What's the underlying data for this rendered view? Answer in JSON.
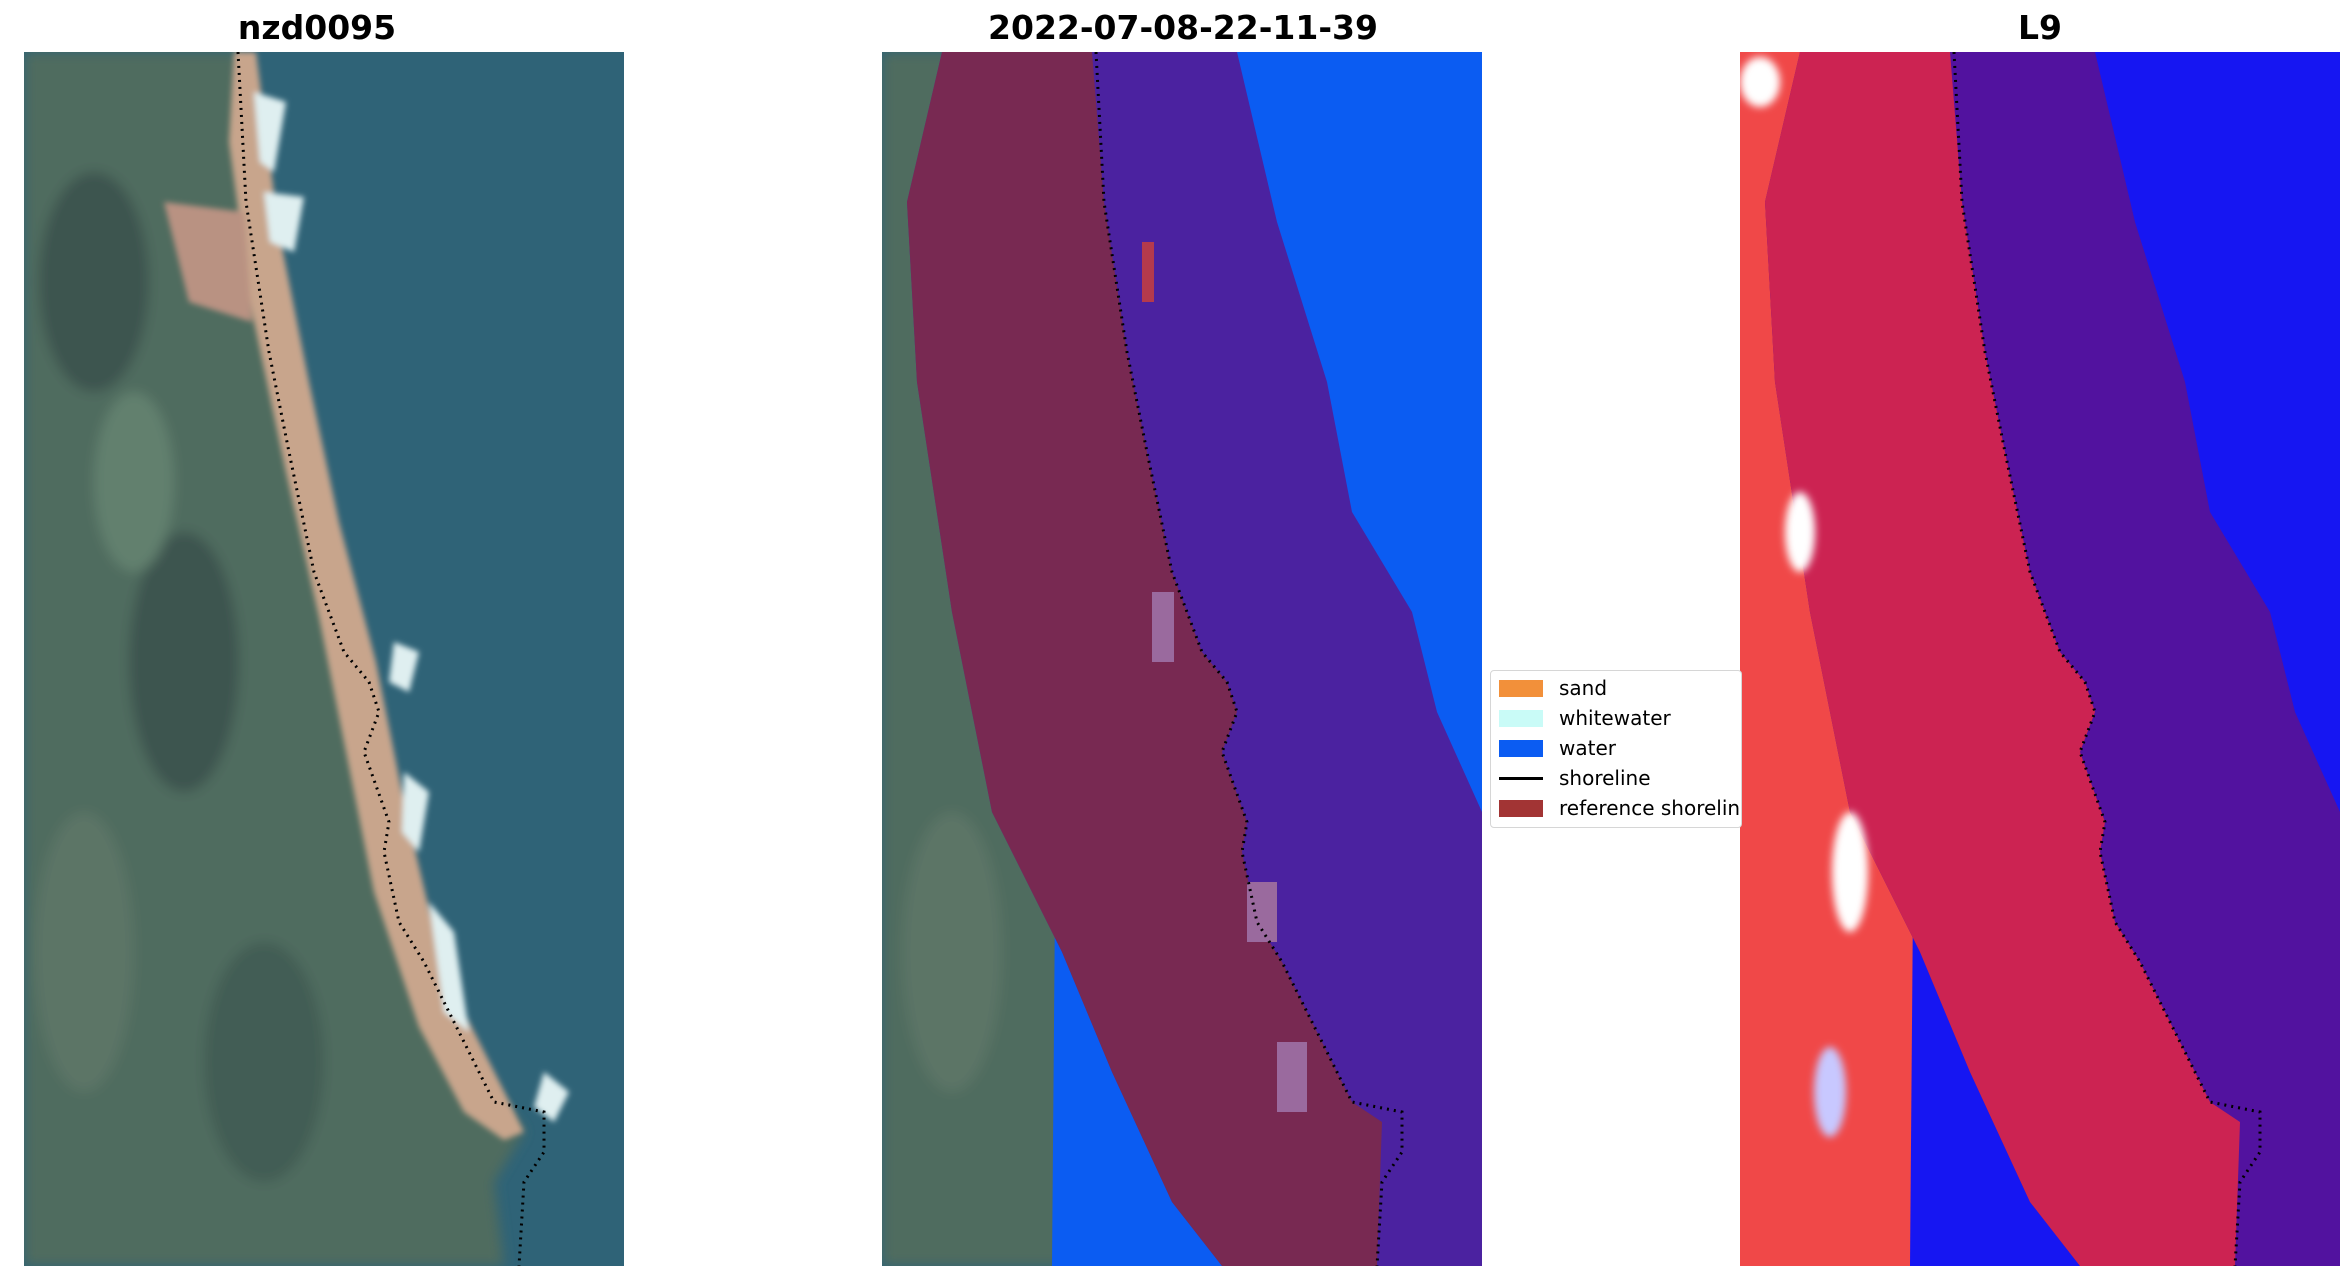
{
  "panels": [
    {
      "title": "nzd0095"
    },
    {
      "title": "2022-07-08-22-11-39"
    },
    {
      "title": "L9"
    }
  ],
  "legend": {
    "items": [
      {
        "label": "sand",
        "kind": "patch",
        "color": "#f2903a"
      },
      {
        "label": "whitewater",
        "kind": "patch",
        "color": "#c9fbf7"
      },
      {
        "label": "water",
        "kind": "patch",
        "color": "#0b5cf2"
      },
      {
        "label": "shoreline",
        "kind": "line",
        "color": "#000000"
      },
      {
        "label": "reference shoreline",
        "kind": "patch",
        "color": "#a23434"
      }
    ]
  },
  "colors": {
    "ocean": "#2f6377",
    "land": "#4f6c5e",
    "beach": "#c8a58c",
    "foam": "#dfeff0",
    "water_class": "#0b5cf2",
    "buffer_land_overlay": "#7a2a4e",
    "buffer_water_overlay": "#4b22a0",
    "index_land": "#f04848",
    "index_buffer_land": "#cc2352",
    "index_buffer_water": "#52129f",
    "index_water": "#1616f2"
  }
}
